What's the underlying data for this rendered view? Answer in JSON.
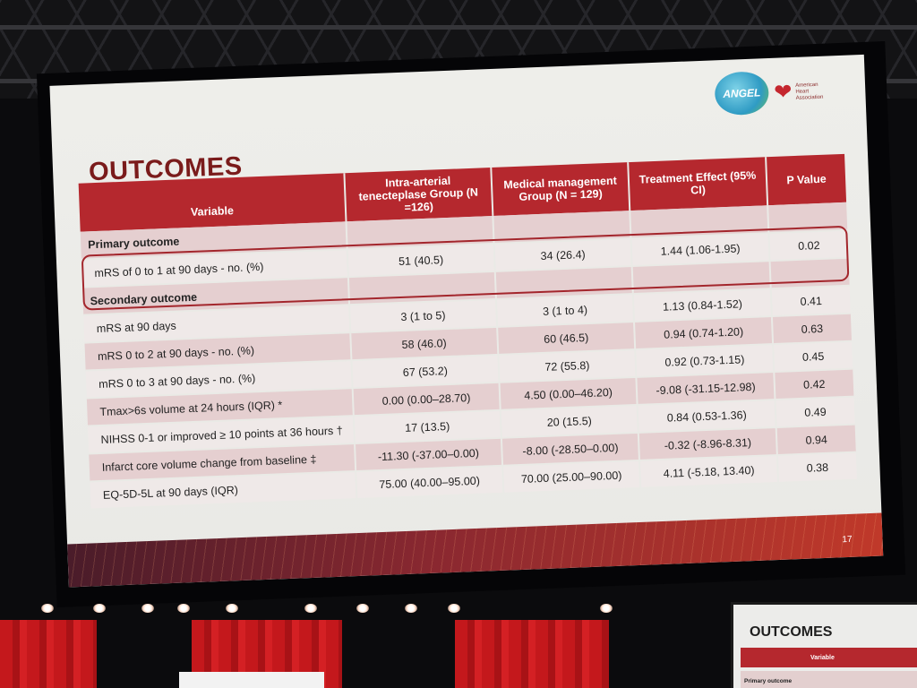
{
  "slide": {
    "title": "OUTCOMES",
    "page_number": "17",
    "logo_text": "ANGEL",
    "aha_text": "American Heart Association",
    "colors": {
      "header_red": "#b5282e",
      "title_red": "#7a1b1b",
      "row_pink": "#e5cfd0",
      "row_light": "#efe9e8"
    }
  },
  "table": {
    "headers": [
      "Variable",
      "Intra-arterial tenecteplase Group (N =126)",
      "Medical management Group (N = 129)",
      "Treatment Effect (95% CI)",
      "P Value"
    ],
    "rows": [
      {
        "section": "Primary outcome"
      },
      {
        "variable": "mRS of 0 to 1 at 90 days - no. (%)",
        "ia": "51 (40.5)",
        "med": "34 (26.4)",
        "effect": "1.44 (1.06-1.95)",
        "p": "0.02"
      },
      {
        "section": "Secondary outcome"
      },
      {
        "variable": "mRS at 90 days",
        "ia": "3 (1 to 5)",
        "med": "3 (1 to 4)",
        "effect": "1.13 (0.84-1.52)",
        "p": "0.41"
      },
      {
        "variable": "mRS 0 to 2 at 90 days - no. (%)",
        "ia": "58 (46.0)",
        "med": "60 (46.5)",
        "effect": "0.94 (0.74-1.20)",
        "p": "0.63"
      },
      {
        "variable": "mRS 0 to 3 at 90 days - no. (%)",
        "ia": "67 (53.2)",
        "med": "72 (55.8)",
        "effect": "0.92 (0.73-1.15)",
        "p": "0.45"
      },
      {
        "variable": "Tmax>6s volume at 24 hours (IQR) *",
        "ia": "0.00 (0.00–28.70)",
        "med": "4.50 (0.00–46.20)",
        "effect": "-9.08 (-31.15-12.98)",
        "p": "0.42"
      },
      {
        "variable": "NIHSS 0-1 or improved ≥ 10 points at 36 hours †",
        "ia": "17 (13.5)",
        "med": "20 (15.5)",
        "effect": "0.84 (0.53-1.36)",
        "p": "0.49"
      },
      {
        "variable": "Infarct core volume change from baseline ‡",
        "ia": "-11.30 (-37.00–0.00)",
        "med": "-8.00 (-28.50–0.00)",
        "effect": "-0.32 (-8.96-8.31)",
        "p": "0.94"
      },
      {
        "variable": "EQ-5D-5L at 90 days (IQR)",
        "ia": "75.00 (40.00–95.00)",
        "med": "70.00 (25.00–90.00)",
        "effect": "4.11 (-5.18, 13.40)",
        "p": "0.38"
      }
    ]
  },
  "monitor": {
    "title": "OUTCOMES",
    "header": "Variable",
    "row": "Primary outcome"
  }
}
